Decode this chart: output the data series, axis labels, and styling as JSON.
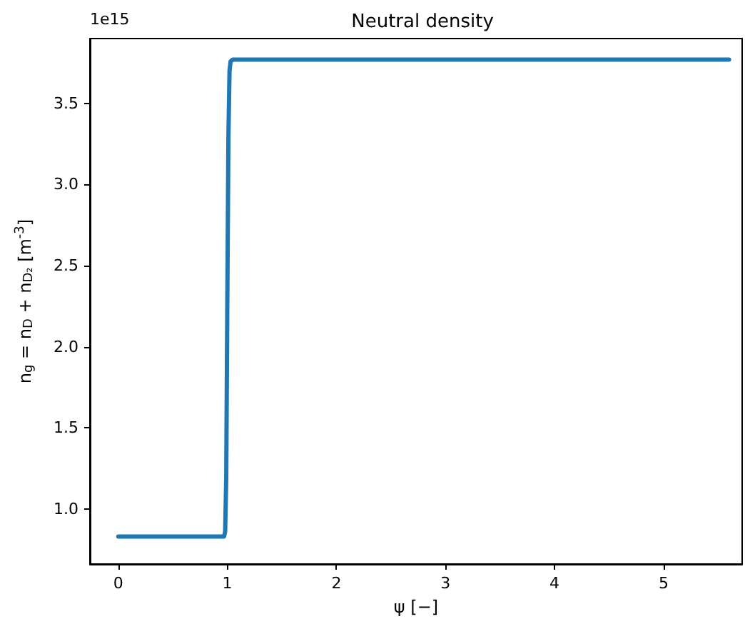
{
  "chart_data": {
    "type": "line",
    "title": "Neutral density",
    "xlabel": "ψ [−]",
    "ylabel": "n$_{g}$ = n$_{D}$ + n$_{D₂}$ [m$^{-3}$]",
    "annotations": [
      "1e15"
    ],
    "x": [
      0,
      0.5,
      0.97,
      0.98,
      0.99,
      1.0,
      1.01,
      1.02,
      1.03,
      1.05,
      2,
      3,
      4,
      5,
      5.6
    ],
    "series": [
      {
        "color": "#1f77b4",
        "values": [
          0.83,
          0.83,
          0.83,
          0.86,
          1.2,
          2.3,
          3.3,
          3.7,
          3.76,
          3.77,
          3.77,
          3.77,
          3.77,
          3.77,
          3.77
        ]
      }
    ],
    "xlim": [
      -0.26,
      5.72
    ],
    "xticks": [
      0,
      1,
      2,
      3,
      4,
      5
    ],
    "ylim": [
      0.66,
      3.9
    ],
    "yticks": [
      {
        "value": 1,
        "label": "1.0"
      },
      {
        "value": 1.5,
        "label": "1.5"
      },
      {
        "value": 2,
        "label": "2.0"
      },
      {
        "value": 2.5,
        "label": "2.5"
      },
      {
        "value": 3,
        "label": "3.0"
      },
      {
        "value": 3.5,
        "label": "3.5"
      }
    ],
    "grid": false,
    "marker": "none",
    "line_style": "solid"
  }
}
